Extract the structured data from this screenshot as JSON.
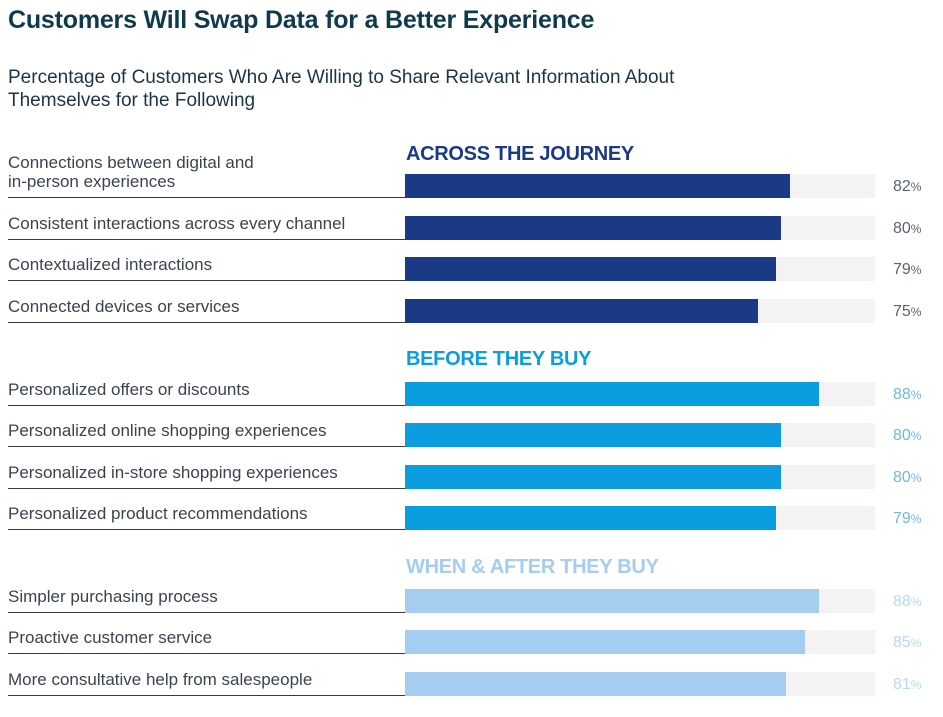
{
  "title": "Customers Will Swap Data for a Better Experience",
  "subtitle": "Percentage of Customers Who Are Willing to Share Relevant Information About Themselves for the Following",
  "percent_sign": "%",
  "chart_data": {
    "type": "bar",
    "orientation": "horizontal",
    "xlim": [
      0,
      100
    ],
    "unit": "%",
    "groups": [
      {
        "heading": "ACROSS THE JOURNEY",
        "color": "#1b3a86",
        "items": [
          {
            "label": "Connections between digital and\nin-person experiences",
            "value": 82
          },
          {
            "label": "Consistent interactions across every channel",
            "value": 80
          },
          {
            "label": "Contextualized interactions",
            "value": 79
          },
          {
            "label": "Connected devices or services",
            "value": 75
          }
        ]
      },
      {
        "heading": "BEFORE THEY BUY",
        "color": "#0a9de0",
        "items": [
          {
            "label": "Personalized offers or discounts",
            "value": 88
          },
          {
            "label": "Personalized online shopping experiences",
            "value": 80
          },
          {
            "label": "Personalized in-store shopping experiences",
            "value": 80
          },
          {
            "label": "Personalized product recommendations",
            "value": 79
          }
        ]
      },
      {
        "heading": "WHEN & AFTER THEY BUY",
        "color": "#a4cdf0",
        "items": [
          {
            "label": "Simpler purchasing process",
            "value": 88
          },
          {
            "label": "Proactive customer service",
            "value": 85
          },
          {
            "label": "More consultative help from salespeople",
            "value": 81
          }
        ]
      }
    ]
  }
}
